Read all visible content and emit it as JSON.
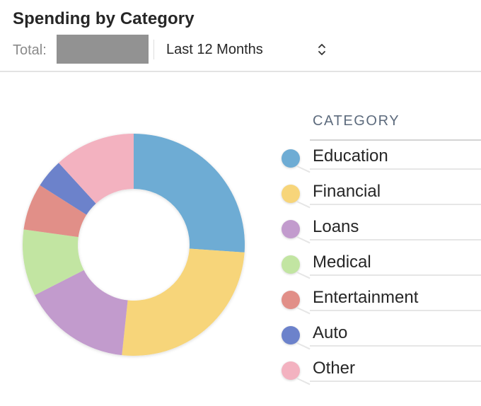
{
  "header": {
    "title": "Spending by Category",
    "total_label": "Total:",
    "total_value_redacted": true,
    "period_selector": {
      "selected": "Last 12 Months",
      "icon": "up-down-chevron-icon"
    }
  },
  "legend": {
    "heading": "CATEGORY",
    "items": [
      {
        "label": "Education",
        "color": "#6eacd4"
      },
      {
        "label": "Financial",
        "color": "#f7d57a"
      },
      {
        "label": "Loans",
        "color": "#c29bcd"
      },
      {
        "label": "Medical",
        "color": "#c2e5a2"
      },
      {
        "label": "Entertainment",
        "color": "#e18f88"
      },
      {
        "label": "Auto",
        "color": "#6c82cb"
      },
      {
        "label": "Other",
        "color": "#f3b2c0"
      }
    ]
  },
  "chart_data": {
    "type": "pie",
    "variant": "donut",
    "title": "Spending by Category",
    "subtitle": "Last 12 Months",
    "categories": [
      "Education",
      "Financial",
      "Loans",
      "Medical",
      "Entertainment",
      "Auto",
      "Other"
    ],
    "values": [
      26.1,
      25.6,
      15.8,
      9.7,
      6.8,
      4.2,
      11.8
    ],
    "unit": "percent (estimated from slice angles)",
    "colors": [
      "#6eacd4",
      "#f7d57a",
      "#c29bcd",
      "#c2e5a2",
      "#e18f88",
      "#6c82cb",
      "#f3b2c0"
    ],
    "start_angle_deg": 0,
    "direction": "clockwise",
    "legend_position": "right",
    "legend_title": "CATEGORY"
  }
}
